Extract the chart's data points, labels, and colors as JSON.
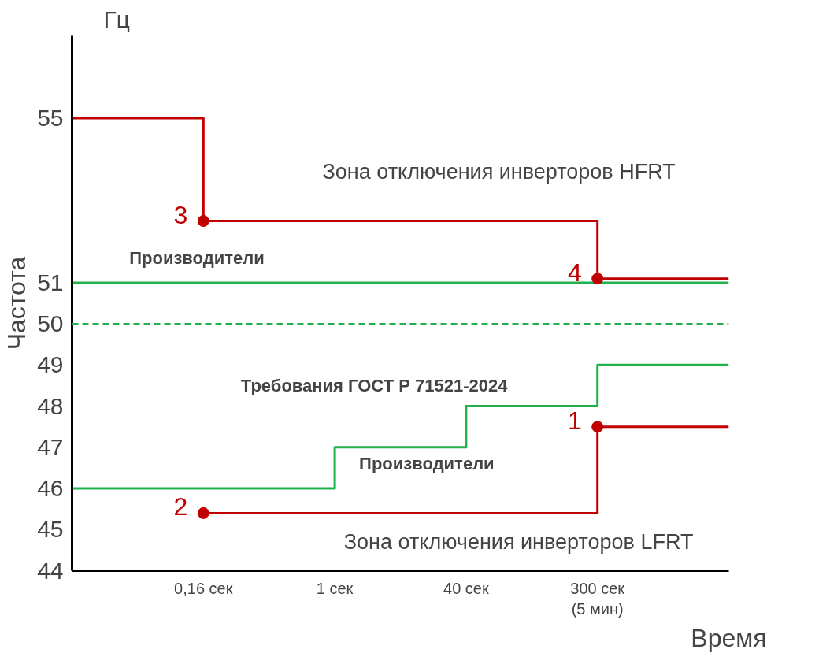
{
  "chart_data": {
    "type": "step",
    "xlabel": "Время",
    "ylabel": "Частота",
    "categories": [
      null,
      "0,16 сек",
      "1 сек",
      "40 сек",
      "300 сек\n(5 мин)",
      null
    ],
    "ylim": [
      44,
      57
    ],
    "yticks": [
      44,
      45,
      46,
      47,
      48,
      49,
      50,
      51,
      55
    ],
    "grid": false,
    "line_style": "solid",
    "series": [
      {
        "color": "#c00000",
        "values": [
          55,
          52.5,
          52.5,
          52.5,
          51.1,
          51.1
        ]
      },
      {
        "color": "#c00000",
        "values": [
          null,
          45.4,
          45.4,
          45.4,
          47.5,
          47.5
        ]
      },
      {
        "color": "#22b14c",
        "values": [
          46,
          46,
          47,
          48,
          49,
          49
        ]
      },
      {
        "color": "#22b14c",
        "values": [
          51,
          51,
          51,
          51,
          51,
          51
        ]
      },
      {
        "type": "scatter",
        "marker": "circle",
        "color": "#c00000",
        "values": [
          null,
          45.4,
          null,
          null,
          47.5,
          null
        ]
      },
      {
        "type": "scatter",
        "marker": "circle",
        "color": "#c00000",
        "values": [
          null,
          52.5,
          null,
          null,
          51.1,
          null
        ]
      }
    ],
    "ref_lines": [
      {
        "axis": "y",
        "value": 50,
        "label": null,
        "color": "#22b14c",
        "line_style": "dashed"
      }
    ],
    "annotations": [
      "Гц",
      {
        "text": "1",
        "x": "300 сек\n(5 мин)",
        "y": 47.5
      },
      {
        "text": "2",
        "x": "0,16 сек",
        "y": 45.4
      },
      {
        "text": "3",
        "x": "0,16 сек",
        "y": 52.5
      },
      {
        "text": "4",
        "x": "300 сек\n(5 мин)",
        "y": 51.1
      },
      "Зона отключения инверторов HFRT",
      "Производители",
      "Требования ГОСТ Р 71521-2024",
      "Производители",
      "Зона отключения инверторов LFRT"
    ]
  }
}
